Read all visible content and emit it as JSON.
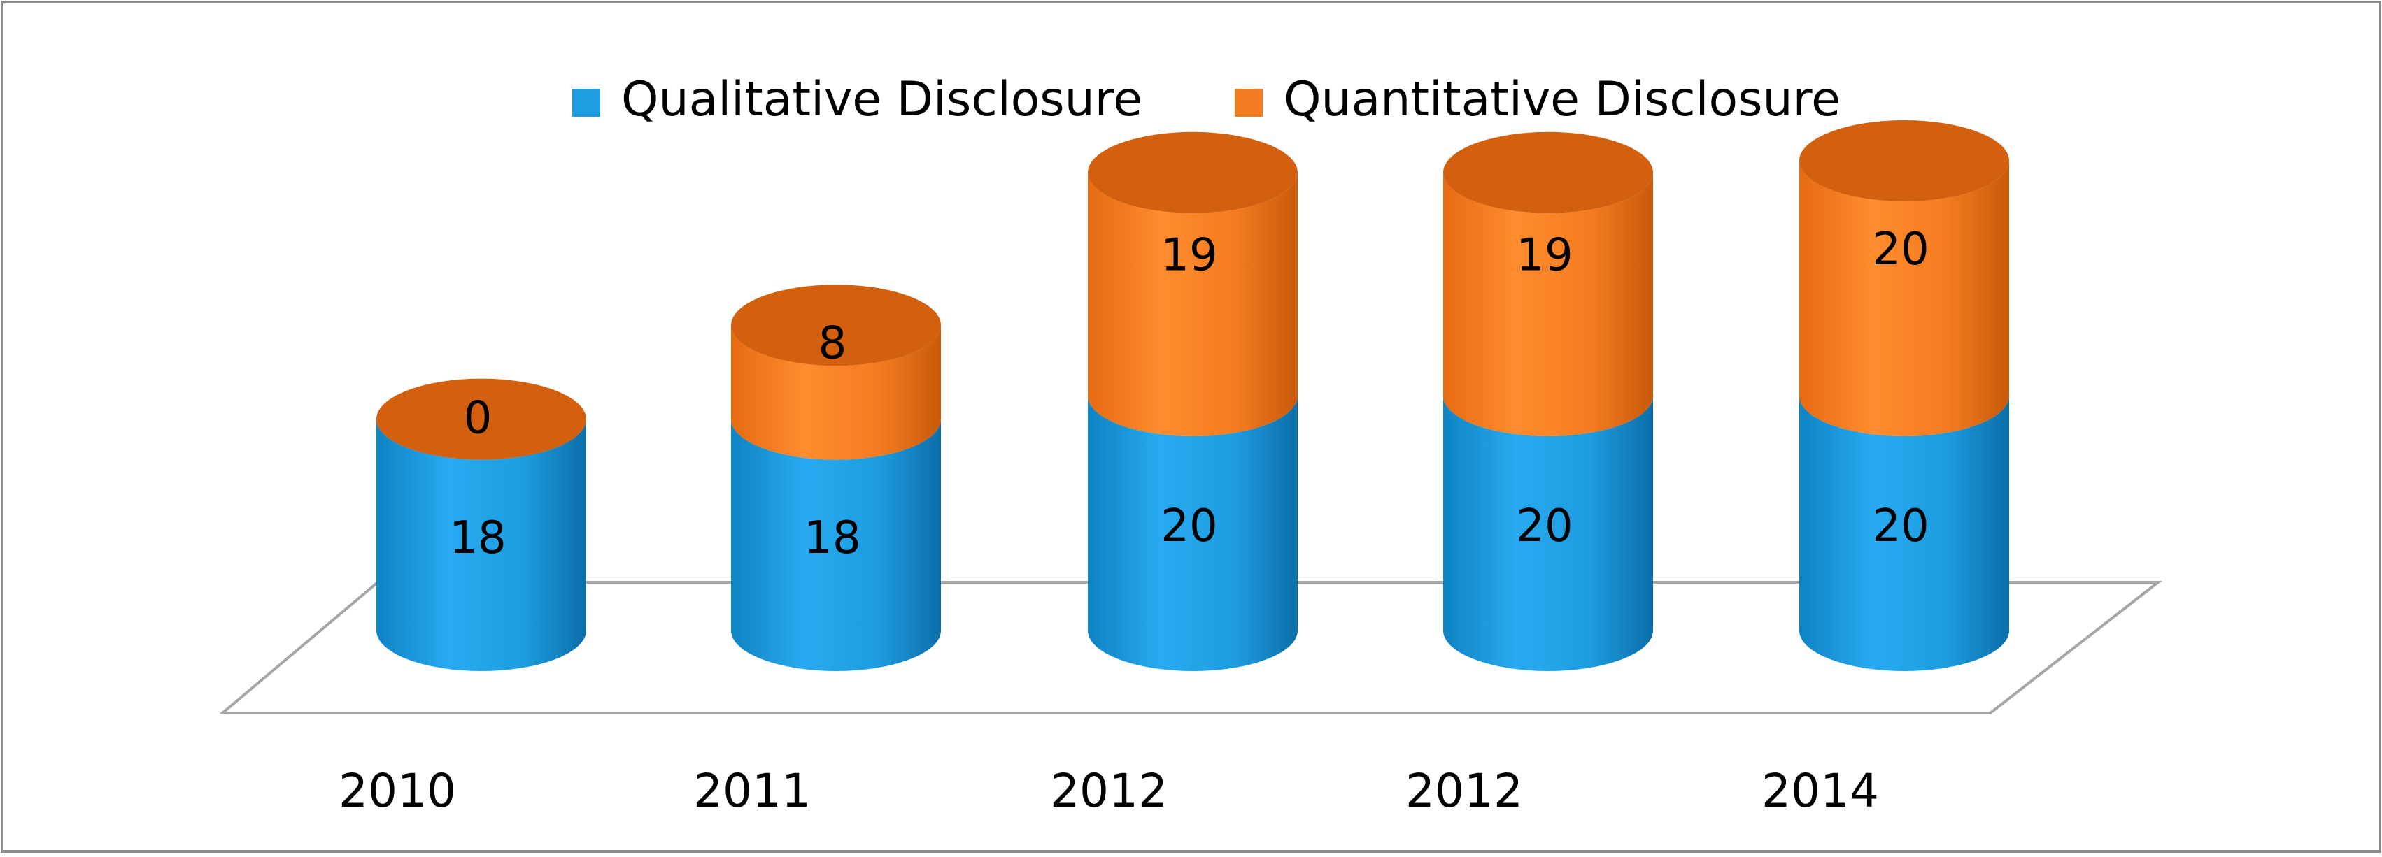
{
  "chart_data": {
    "type": "bar",
    "stacked": true,
    "style": "3d-cylinder",
    "categories": [
      "2010",
      "2011",
      "2012",
      "2012",
      "2014"
    ],
    "series": [
      {
        "name": "Qualitative Disclosure",
        "values": [
          18,
          18,
          20,
          20,
          20
        ],
        "color": "#1e9ee0"
      },
      {
        "name": "Quantitative Disclosure",
        "values": [
          0,
          8,
          19,
          19,
          20
        ],
        "color": "#f47c20"
      }
    ],
    "title": "",
    "xlabel": "",
    "ylabel": "",
    "legend_position": "top-center",
    "data_labels": true,
    "grid": false,
    "ylim": [
      0,
      40
    ]
  }
}
